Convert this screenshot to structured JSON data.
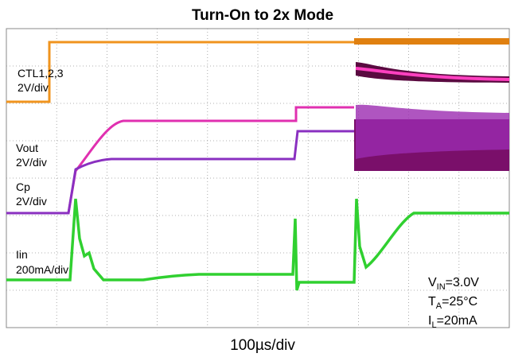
{
  "title": "Turn-On to 2x Mode",
  "channels": [
    {
      "name": "CTL1,2,3",
      "scale": "2V/div"
    },
    {
      "name": "Vout",
      "scale": "2V/div"
    },
    {
      "name": "Cp",
      "scale": "2V/div"
    },
    {
      "name": "Iin",
      "scale": "200mA/div"
    }
  ],
  "conditions": [
    {
      "main": "V",
      "sub": "IN",
      "rest": "=3.0V"
    },
    {
      "main": "T",
      "sub": "A",
      "rest": "=25°C"
    },
    {
      "main": "I",
      "sub": "L",
      "rest": "=20mA"
    }
  ],
  "time_scale": "100µs/div"
}
